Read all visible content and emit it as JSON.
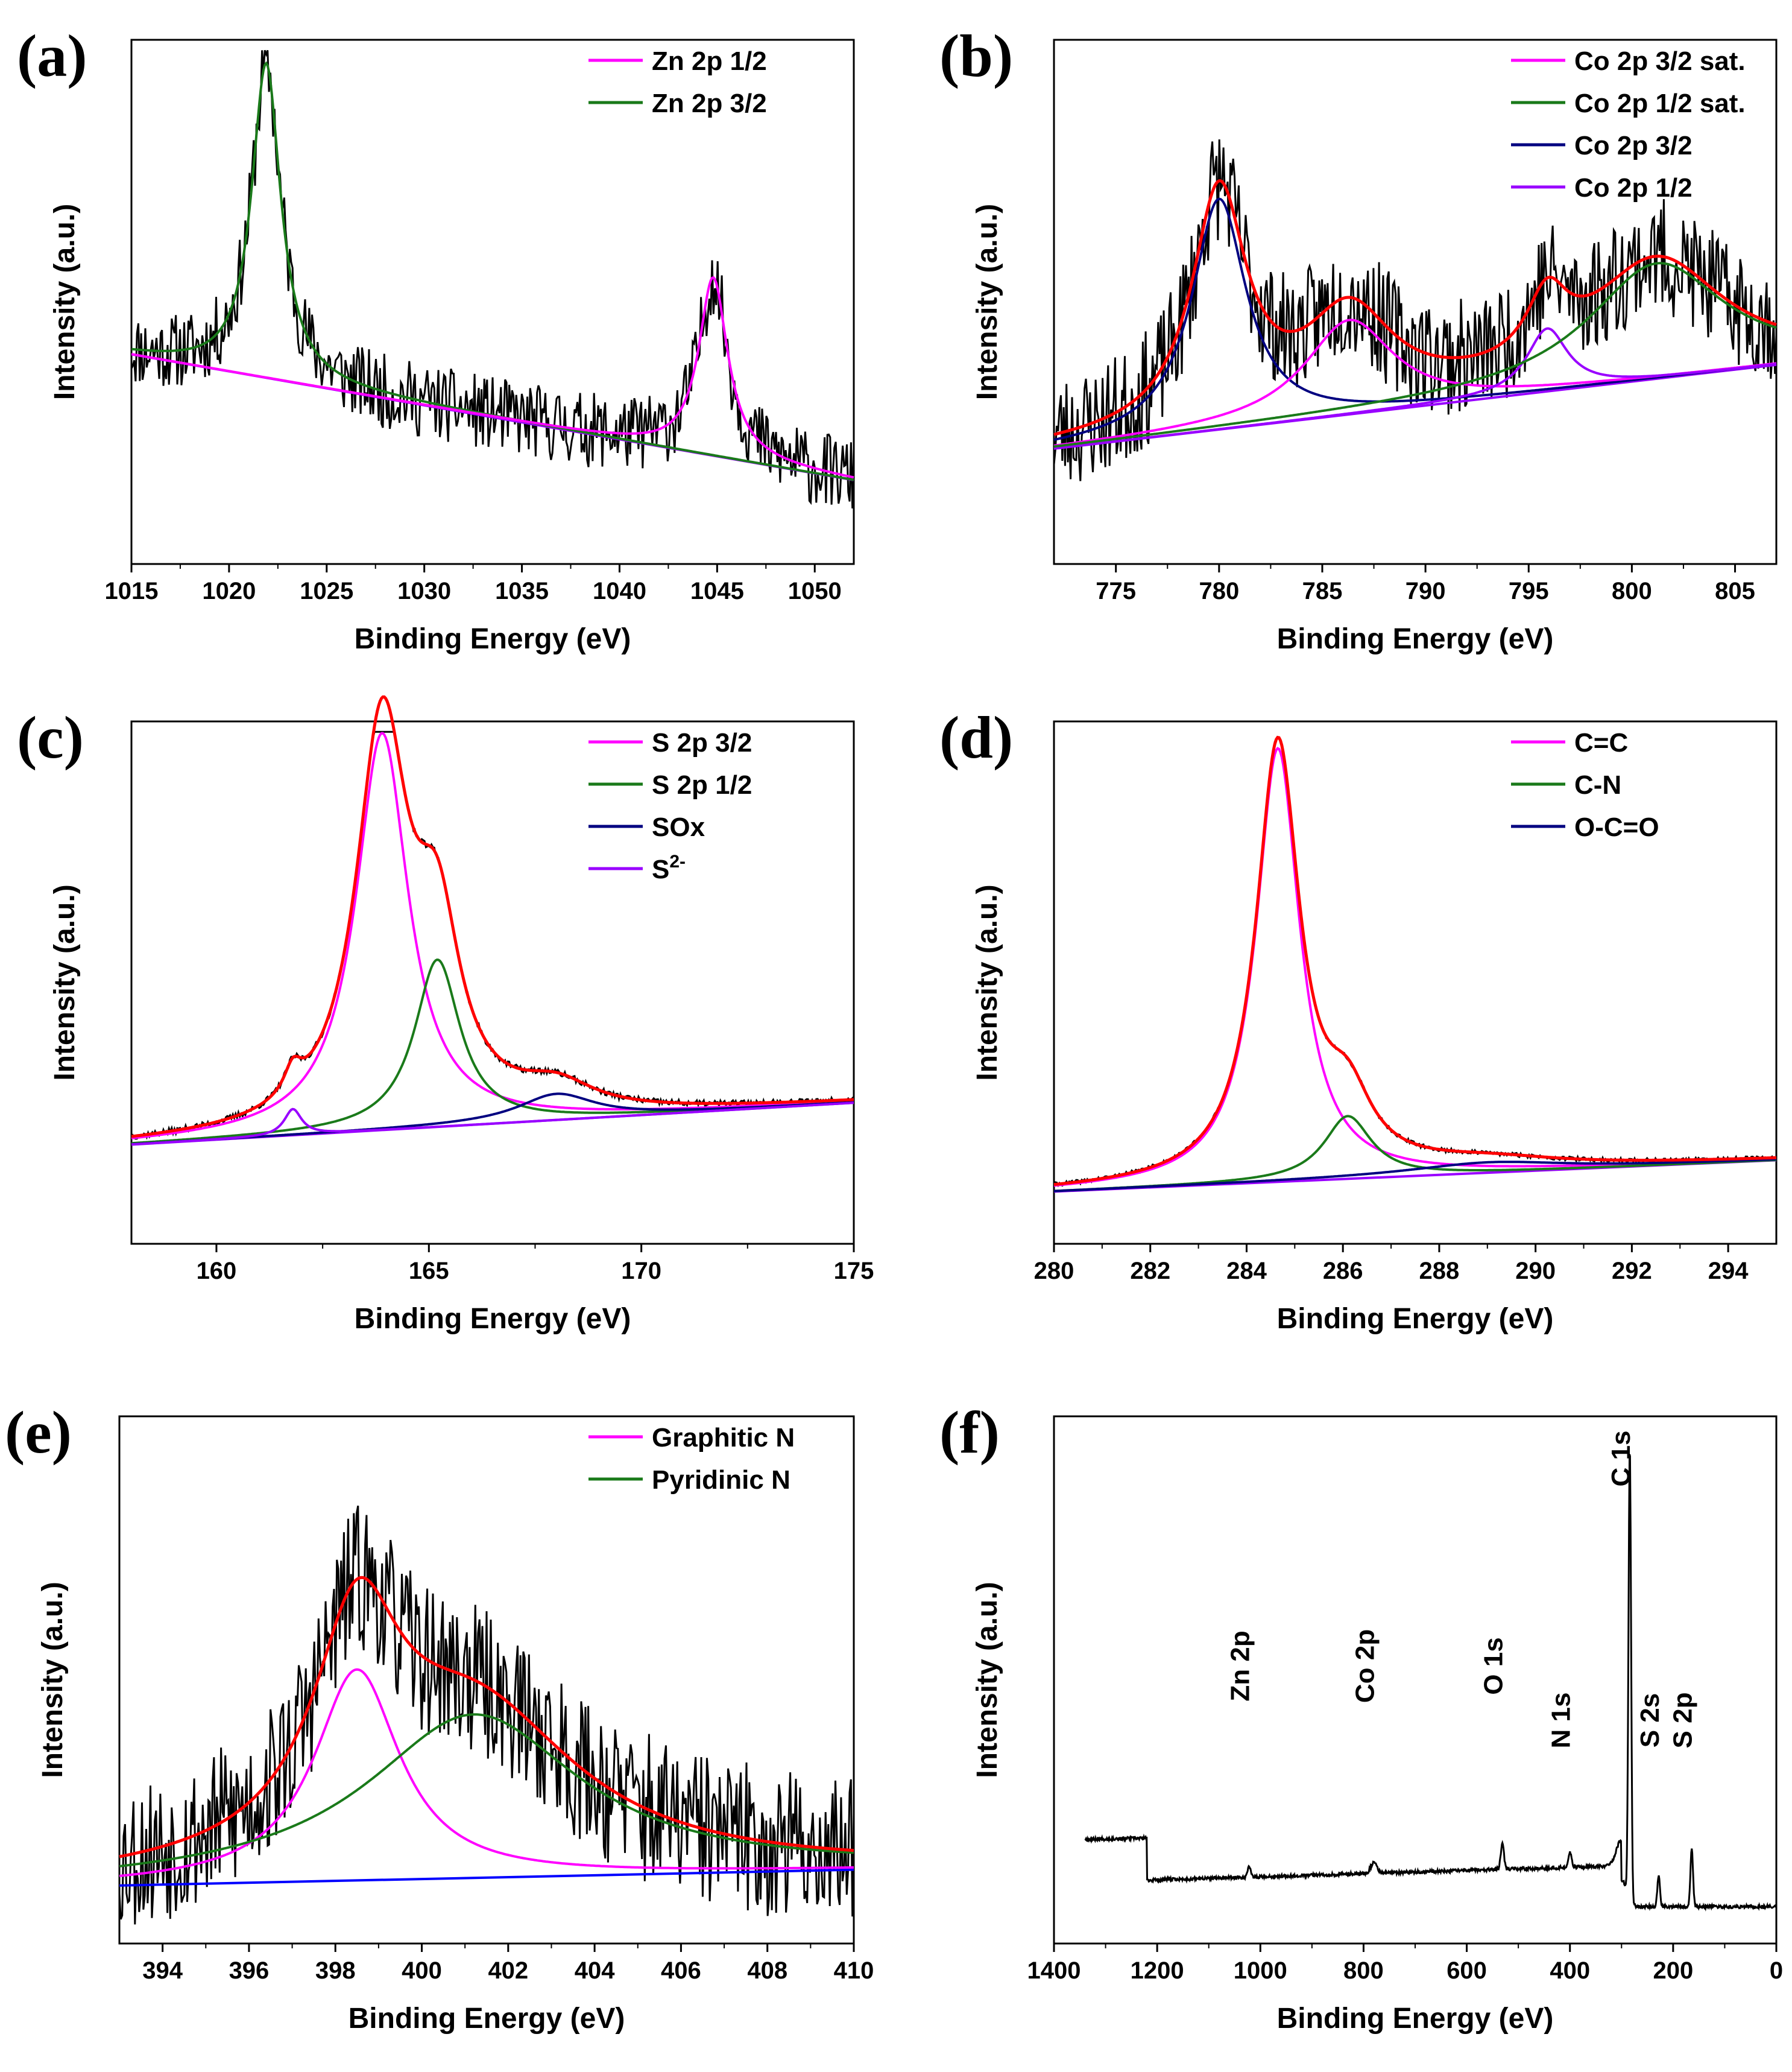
{
  "figure": {
    "description_panels": 6
  },
  "chart_data": [
    {
      "id": "a",
      "panel_label": "(a)",
      "type": "line",
      "xlabel": "Binding Energy (eV)",
      "ylabel": "Intensity (a.u.)",
      "xlim": [
        1015,
        1052
      ],
      "ylim": [
        0,
        1
      ],
      "x_reversed": false,
      "xticks": [
        1015,
        1020,
        1025,
        1030,
        1035,
        1040,
        1045,
        1050
      ],
      "noise": 0.045,
      "seed": 11,
      "baseline": [
        0.4,
        0.16
      ],
      "fits": [
        {
          "name": "Zn 2p 3/2",
          "color": "#1a7a1a",
          "center": 1021.9,
          "height": 0.6,
          "width": 0.9
        },
        {
          "name": "Zn 2p 1/2",
          "color": "#ff00ff",
          "center": 1044.8,
          "height": 0.34,
          "width": 0.9
        }
      ],
      "legend": [
        {
          "label": "Zn 2p 1/2",
          "color": "#ff00ff"
        },
        {
          "label": "Zn 2p 3/2",
          "color": "#1a7a1a"
        }
      ],
      "envelope": false
    },
    {
      "id": "b",
      "panel_label": "(b)",
      "type": "line",
      "xlabel": "Binding Energy (eV)",
      "ylabel": "Intensity (a.u.)",
      "xlim": [
        772,
        807
      ],
      "ylim": [
        0,
        1
      ],
      "x_reversed": false,
      "xticks": [
        775,
        780,
        785,
        790,
        795,
        800,
        805
      ],
      "noise": 0.07,
      "seed": 23,
      "baseline": [
        0.22,
        0.38
      ],
      "fits": [
        {
          "name": "Co 2p 3/2",
          "color": "#000080",
          "center": 780.0,
          "height": 0.44,
          "width": 1.6
        },
        {
          "name": "Co 2p 3/2 sat.",
          "color": "#ff00ff",
          "center": 786.3,
          "height": 0.18,
          "width": 2.6
        },
        {
          "name": "Co 2p 1/2",
          "color": "#9900ff",
          "center": 795.9,
          "height": 0.12,
          "width": 1.2
        },
        {
          "name": "Co 2p 1/2 sat.",
          "color": "#1a7a1a",
          "center": 801.2,
          "height": 0.22,
          "width": 4.0
        }
      ],
      "legend": [
        {
          "label": "Co 2p 3/2 sat.",
          "color": "#ff00ff"
        },
        {
          "label": "Co 2p 1/2 sat.",
          "color": "#1a7a1a"
        },
        {
          "label": "Co 2p 3/2",
          "color": "#000080"
        },
        {
          "label": "Co 2p 1/2",
          "color": "#9900ff"
        }
      ],
      "envelope": true
    },
    {
      "id": "c",
      "panel_label": "(c)",
      "type": "line",
      "xlabel": "Binding Energy (eV)",
      "ylabel": "Intensity (a.u.)",
      "xlim": [
        158,
        175
      ],
      "ylim": [
        0,
        1
      ],
      "x_reversed": false,
      "xticks": [
        160,
        165,
        170,
        175
      ],
      "noise": 0.006,
      "seed": 37,
      "baseline": [
        0.19,
        0.27
      ],
      "fits": [
        {
          "name": "S 2p 3/2",
          "color": "#ff00ff",
          "center": 163.9,
          "height": 0.76,
          "width": 0.75
        },
        {
          "name": "S 2p 1/2",
          "color": "#1a7a1a",
          "center": 165.2,
          "height": 0.32,
          "width": 0.65
        },
        {
          "name": "SOx",
          "color": "#000080",
          "center": 168.0,
          "height": 0.05,
          "width": 1.1
        },
        {
          "name": "S2-",
          "color": "#9900ff",
          "center": 161.8,
          "height": 0.05,
          "width": 0.25
        }
      ],
      "legend": [
        {
          "label": "S 2p 3/2",
          "color": "#ff00ff"
        },
        {
          "label": "S 2p 1/2",
          "color": "#1a7a1a"
        },
        {
          "label": "SOx",
          "color": "#000080"
        },
        {
          "label": "S",
          "sup": "2-",
          "color": "#9900ff"
        }
      ],
      "envelope": true
    },
    {
      "id": "d",
      "panel_label": "(d)",
      "type": "line",
      "xlabel": "Binding Energy (eV)",
      "ylabel": "Intensity (a.u.)",
      "xlim": [
        280,
        295
      ],
      "ylim": [
        0,
        1
      ],
      "x_reversed": false,
      "xticks": [
        280,
        282,
        284,
        286,
        288,
        290,
        292,
        294
      ],
      "noise": 0.004,
      "seed": 41,
      "baseline": [
        0.1,
        0.16
      ],
      "fits": [
        {
          "name": "C=C",
          "color": "#ff00ff",
          "center": 284.65,
          "height": 0.83,
          "width": 0.55
        },
        {
          "name": "C-N",
          "color": "#1a7a1a",
          "center": 286.1,
          "height": 0.12,
          "width": 0.6
        },
        {
          "name": "O-C=O",
          "color": "#000080",
          "center": 289.0,
          "height": 0.02,
          "width": 2.0
        }
      ],
      "legend": [
        {
          "label": "C=C",
          "color": "#ff00ff"
        },
        {
          "label": "C-N",
          "color": "#1a7a1a"
        },
        {
          "label": "O-C=O",
          "color": "#000080"
        }
      ],
      "envelope": true
    },
    {
      "id": "e",
      "panel_label": "(e)",
      "type": "line",
      "xlabel": "Binding Energy (eV)",
      "ylabel": "Intensity (a.u.)",
      "xlim": [
        393,
        410
      ],
      "ylim": [
        0,
        1
      ],
      "x_reversed": false,
      "xticks": [
        394,
        396,
        398,
        400,
        402,
        404,
        406,
        408,
        410
      ],
      "noise": 0.09,
      "seed": 53,
      "baseline": [
        0.11,
        0.14
      ],
      "fits": [
        {
          "name": "Graphitic N",
          "color": "#ff00ff",
          "center": 398.5,
          "height": 0.4,
          "width": 1.2
        },
        {
          "name": "Pyridinic N",
          "color": "#1a7a1a",
          "center": 401.2,
          "height": 0.31,
          "width": 3.0
        }
      ],
      "legend": [
        {
          "label": "Graphitic N",
          "color": "#ff00ff"
        },
        {
          "label": "Pyridinic N",
          "color": "#1a7a1a"
        }
      ],
      "envelope": true,
      "baseline_color": "#0000ff"
    },
    {
      "id": "f",
      "panel_label": "(f)",
      "type": "line",
      "xlabel": "Binding Energy (eV)",
      "ylabel": "Intensity (a.u.)",
      "xlim": [
        1400,
        0
      ],
      "ylim": [
        0,
        1
      ],
      "x_reversed": true,
      "xticks": [
        1400,
        1200,
        1000,
        800,
        600,
        400,
        200,
        0
      ],
      "survey": true,
      "seed": 67,
      "annotations": [
        {
          "label": "Zn 2p",
          "x": 1022
        },
        {
          "label": "Co 2p",
          "x": 780
        },
        {
          "label": "O 1s",
          "x": 531
        },
        {
          "label": "N 1s",
          "x": 400
        },
        {
          "label": "C 1s",
          "x": 284
        },
        {
          "label": "S 2s",
          "x": 228
        },
        {
          "label": "S 2p",
          "x": 164
        }
      ]
    }
  ]
}
